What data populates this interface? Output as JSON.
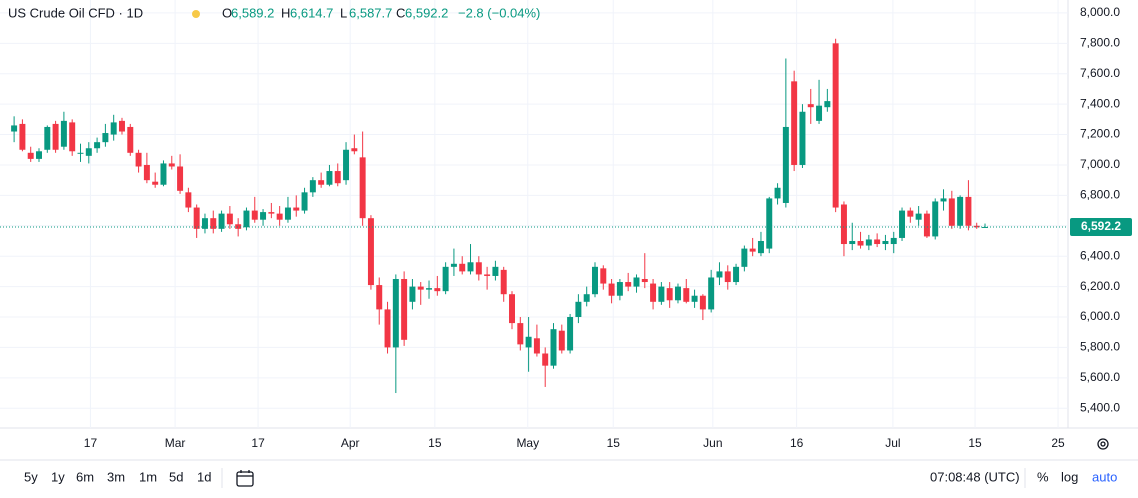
{
  "chart_data": {
    "type": "candlestick",
    "title": "US Crude Oil CFD · 1D",
    "ohlc_legend": [
      {
        "key": "O",
        "value": "6,589.2"
      },
      {
        "key": "H",
        "value": "6,614.7"
      },
      {
        "key": "L",
        "value": "6,587.7"
      },
      {
        "key": "C",
        "value": "6,592.2"
      }
    ],
    "change": "−2.8 (−0.04%)",
    "up_color": "#089981",
    "down_color": "#f23645",
    "last_price": {
      "value": 6592.2,
      "label": "6,592.2"
    },
    "ylim": [
      5270,
      8085
    ],
    "yticks": [
      {
        "value": 5400,
        "label": "5,400.0"
      },
      {
        "value": 5600,
        "label": "5,600.0"
      },
      {
        "value": 5800,
        "label": "5,800.0"
      },
      {
        "value": 6000,
        "label": "6,000.0"
      },
      {
        "value": 6200,
        "label": "6,200.0"
      },
      {
        "value": 6400,
        "label": "6,400.0"
      },
      {
        "value": 6600,
        "label": "6,600.0"
      },
      {
        "value": 6800,
        "label": "6,800.0"
      },
      {
        "value": 7000,
        "label": "7,000.0"
      },
      {
        "value": 7200,
        "label": "7,200.0"
      },
      {
        "value": 7400,
        "label": "7,400.0"
      },
      {
        "value": 7600,
        "label": "7,600.0"
      },
      {
        "value": 7800,
        "label": "7,800.0"
      },
      {
        "value": 8000,
        "label": "8,000.0"
      }
    ],
    "xlim": [
      -1.7,
      127
    ],
    "xticks": [
      {
        "value": 9.2,
        "label": "17"
      },
      {
        "value": 19.4,
        "label": "Mar"
      },
      {
        "value": 29.4,
        "label": "17"
      },
      {
        "value": 40.5,
        "label": "Apr"
      },
      {
        "value": 50.7,
        "label": "15"
      },
      {
        "value": 61.9,
        "label": "May"
      },
      {
        "value": 72.2,
        "label": "15"
      },
      {
        "value": 84.2,
        "label": "Jun"
      },
      {
        "value": 94.3,
        "label": "16"
      },
      {
        "value": 105.9,
        "label": "Jul"
      },
      {
        "value": 115.8,
        "label": "15"
      },
      {
        "value": 125.8,
        "label": "25"
      }
    ],
    "candles": [
      [
        7220,
        7320,
        7150,
        7260
      ],
      [
        7270,
        7300,
        7090,
        7100
      ],
      [
        7080,
        7120,
        7020,
        7040
      ],
      [
        7040,
        7110,
        7020,
        7090
      ],
      [
        7100,
        7260,
        7080,
        7250
      ],
      [
        7270,
        7290,
        7080,
        7100
      ],
      [
        7120,
        7350,
        7100,
        7290
      ],
      [
        7280,
        7300,
        7060,
        7090
      ],
      [
        7080,
        7140,
        7020,
        7080
      ],
      [
        7060,
        7150,
        7010,
        7110
      ],
      [
        7110,
        7180,
        7080,
        7150
      ],
      [
        7150,
        7270,
        7120,
        7210
      ],
      [
        7200,
        7330,
        7160,
        7280
      ],
      [
        7290,
        7310,
        7200,
        7220
      ],
      [
        7250,
        7270,
        7060,
        7080
      ],
      [
        7080,
        7100,
        6950,
        6990
      ],
      [
        7000,
        7080,
        6880,
        6900
      ],
      [
        6890,
        6950,
        6850,
        6870
      ],
      [
        6870,
        7030,
        6860,
        7010
      ],
      [
        7010,
        7060,
        6970,
        6990
      ],
      [
        6990,
        7070,
        6810,
        6830
      ],
      [
        6820,
        6850,
        6690,
        6720
      ],
      [
        6720,
        6740,
        6520,
        6580
      ],
      [
        6580,
        6680,
        6550,
        6650
      ],
      [
        6650,
        6700,
        6550,
        6580
      ],
      [
        6580,
        6700,
        6560,
        6680
      ],
      [
        6680,
        6730,
        6580,
        6610
      ],
      [
        6610,
        6650,
        6530,
        6580
      ],
      [
        6590,
        6720,
        6570,
        6700
      ],
      [
        6700,
        6790,
        6620,
        6640
      ],
      [
        6640,
        6710,
        6600,
        6690
      ],
      [
        6690,
        6750,
        6650,
        6680
      ],
      [
        6680,
        6730,
        6600,
        6640
      ],
      [
        6640,
        6790,
        6620,
        6720
      ],
      [
        6720,
        6800,
        6660,
        6700
      ],
      [
        6700,
        6850,
        6680,
        6820
      ],
      [
        6820,
        6920,
        6790,
        6900
      ],
      [
        6900,
        6950,
        6850,
        6870
      ],
      [
        6870,
        7000,
        6860,
        6960
      ],
      [
        6960,
        7010,
        6860,
        6880
      ],
      [
        6900,
        7150,
        6870,
        7100
      ],
      [
        7110,
        7200,
        7070,
        7090
      ],
      [
        7050,
        7220,
        6600,
        6650
      ],
      [
        6650,
        6670,
        6180,
        6210
      ],
      [
        6210,
        6260,
        5950,
        6050
      ],
      [
        6050,
        6100,
        5760,
        5800
      ],
      [
        5800,
        6280,
        5500,
        6250
      ],
      [
        6250,
        6300,
        5810,
        5850
      ],
      [
        6100,
        6250,
        6050,
        6200
      ],
      [
        6200,
        6230,
        6080,
        6180
      ],
      [
        6180,
        6240,
        6120,
        6190
      ],
      [
        6190,
        6270,
        6140,
        6170
      ],
      [
        6170,
        6360,
        6150,
        6330
      ],
      [
        6330,
        6450,
        6270,
        6350
      ],
      [
        6350,
        6400,
        6280,
        6300
      ],
      [
        6300,
        6480,
        6280,
        6360
      ],
      [
        6360,
        6400,
        6240,
        6280
      ],
      [
        6280,
        6330,
        6180,
        6270
      ],
      [
        6270,
        6370,
        6240,
        6330
      ],
      [
        6310,
        6330,
        6100,
        6150
      ],
      [
        6150,
        6170,
        5920,
        5960
      ],
      [
        5960,
        6000,
        5780,
        5820
      ],
      [
        5800,
        6000,
        5640,
        5870
      ],
      [
        5860,
        5950,
        5740,
        5760
      ],
      [
        5760,
        5800,
        5540,
        5680
      ],
      [
        5680,
        5960,
        5660,
        5920
      ],
      [
        5910,
        5950,
        5760,
        5780
      ],
      [
        5780,
        6020,
        5760,
        6000
      ],
      [
        6000,
        6150,
        5960,
        6100
      ],
      [
        6100,
        6200,
        6070,
        6150
      ],
      [
        6150,
        6360,
        6130,
        6330
      ],
      [
        6320,
        6340,
        6180,
        6220
      ],
      [
        6220,
        6250,
        6090,
        6140
      ],
      [
        6140,
        6250,
        6110,
        6230
      ],
      [
        6230,
        6290,
        6170,
        6200
      ],
      [
        6200,
        6280,
        6160,
        6260
      ],
      [
        6250,
        6420,
        6190,
        6230
      ],
      [
        6220,
        6250,
        6050,
        6100
      ],
      [
        6100,
        6230,
        6080,
        6200
      ],
      [
        6190,
        6230,
        6060,
        6110
      ],
      [
        6110,
        6220,
        6090,
        6200
      ],
      [
        6190,
        6250,
        6090,
        6100
      ],
      [
        6100,
        6180,
        6060,
        6140
      ],
      [
        6140,
        6150,
        5980,
        6050
      ],
      [
        6050,
        6310,
        6030,
        6260
      ],
      [
        6260,
        6360,
        6210,
        6300
      ],
      [
        6300,
        6340,
        6180,
        6230
      ],
      [
        6230,
        6350,
        6210,
        6330
      ],
      [
        6330,
        6470,
        6300,
        6450
      ],
      [
        6450,
        6520,
        6400,
        6430
      ],
      [
        6420,
        6560,
        6400,
        6500
      ],
      [
        6450,
        6790,
        6420,
        6780
      ],
      [
        6780,
        6880,
        6740,
        6850
      ],
      [
        6750,
        7700,
        6720,
        7250
      ],
      [
        7550,
        7620,
        6960,
        7000
      ],
      [
        7000,
        7400,
        6980,
        7350
      ],
      [
        7400,
        7500,
        7270,
        7380
      ],
      [
        7290,
        7560,
        7270,
        7390
      ],
      [
        7380,
        7500,
        7350,
        7420
      ],
      [
        7800,
        7830,
        6690,
        6720
      ],
      [
        6740,
        6760,
        6400,
        6480
      ],
      [
        6480,
        6620,
        6440,
        6500
      ],
      [
        6500,
        6560,
        6450,
        6470
      ],
      [
        6470,
        6540,
        6440,
        6510
      ],
      [
        6510,
        6550,
        6460,
        6480
      ],
      [
        6480,
        6540,
        6440,
        6500
      ],
      [
        6480,
        6560,
        6420,
        6520
      ],
      [
        6520,
        6720,
        6500,
        6700
      ],
      [
        6700,
        6720,
        6620,
        6660
      ],
      [
        6640,
        6730,
        6600,
        6680
      ],
      [
        6680,
        6700,
        6520,
        6530
      ],
      [
        6530,
        6780,
        6510,
        6760
      ],
      [
        6760,
        6840,
        6700,
        6780
      ],
      [
        6780,
        6830,
        6580,
        6600
      ],
      [
        6600,
        6800,
        6580,
        6790
      ],
      [
        6790,
        6900,
        6570,
        6600
      ],
      [
        6600,
        6620,
        6580,
        6590
      ],
      [
        6589.2,
        6614.7,
        6587.7,
        6592.2
      ]
    ]
  },
  "toolbar": {
    "ranges": [
      "5y",
      "1y",
      "6m",
      "3m",
      "1m",
      "5d",
      "1d"
    ],
    "clock": "07:08:48 (UTC)",
    "percent": "%",
    "log": "log",
    "auto": "auto"
  }
}
